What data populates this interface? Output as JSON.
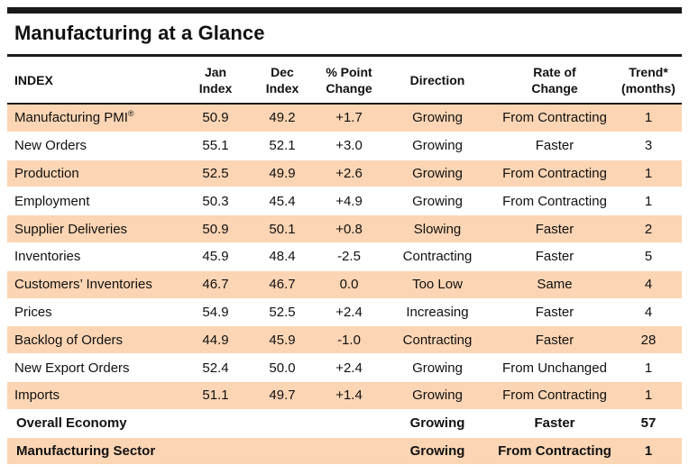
{
  "title": "Manufacturing at a Glance",
  "colors": {
    "shade": "#fcd5b4",
    "rule": "#1a1a1a"
  },
  "columns": [
    "INDEX",
    "Jan\nIndex",
    "Dec\nIndex",
    "% Point\nChange",
    "Direction",
    "Rate of\nChange",
    "Trend*\n(months)"
  ],
  "rows": [
    {
      "name": "Manufacturing PMI",
      "sup": "®",
      "jan": "50.9",
      "dec": "49.2",
      "change": "+1.7",
      "direction": "Growing",
      "rate": "From Contracting",
      "trend": "1"
    },
    {
      "name": "New Orders",
      "jan": "55.1",
      "dec": "52.1",
      "change": "+3.0",
      "direction": "Growing",
      "rate": "Faster",
      "trend": "3"
    },
    {
      "name": "Production",
      "jan": "52.5",
      "dec": "49.9",
      "change": "+2.6",
      "direction": "Growing",
      "rate": "From Contracting",
      "trend": "1"
    },
    {
      "name": "Employment",
      "jan": "50.3",
      "dec": "45.4",
      "change": "+4.9",
      "direction": "Growing",
      "rate": "From Contracting",
      "trend": "1"
    },
    {
      "name": "Supplier Deliveries",
      "jan": "50.9",
      "dec": "50.1",
      "change": "+0.8",
      "direction": "Slowing",
      "rate": "Faster",
      "trend": "2"
    },
    {
      "name": "Inventories",
      "jan": "45.9",
      "dec": "48.4",
      "change": "-2.5",
      "direction": "Contracting",
      "rate": "Faster",
      "trend": "5"
    },
    {
      "name": "Customers’ Inventories",
      "jan": "46.7",
      "dec": "46.7",
      "change": "0.0",
      "direction": "Too Low",
      "rate": "Same",
      "trend": "4"
    },
    {
      "name": "Prices",
      "jan": "54.9",
      "dec": "52.5",
      "change": "+2.4",
      "direction": "Increasing",
      "rate": "Faster",
      "trend": "4"
    },
    {
      "name": "Backlog of Orders",
      "jan": "44.9",
      "dec": "45.9",
      "change": "-1.0",
      "direction": "Contracting",
      "rate": "Faster",
      "trend": "28"
    },
    {
      "name": "New Export Orders",
      "jan": "52.4",
      "dec": "50.0",
      "change": "+2.4",
      "direction": "Growing",
      "rate": "From Unchanged",
      "trend": "1"
    },
    {
      "name": "Imports",
      "jan": "51.1",
      "dec": "49.7",
      "change": "+1.4",
      "direction": "Growing",
      "rate": "From Contracting",
      "trend": "1"
    }
  ],
  "summary": [
    {
      "name": "Overall Economy",
      "direction": "Growing",
      "rate": "Faster",
      "trend": "57"
    },
    {
      "name": "Manufacturing Sector",
      "direction": "Growing",
      "rate": "From Contracting",
      "trend": "1"
    }
  ]
}
